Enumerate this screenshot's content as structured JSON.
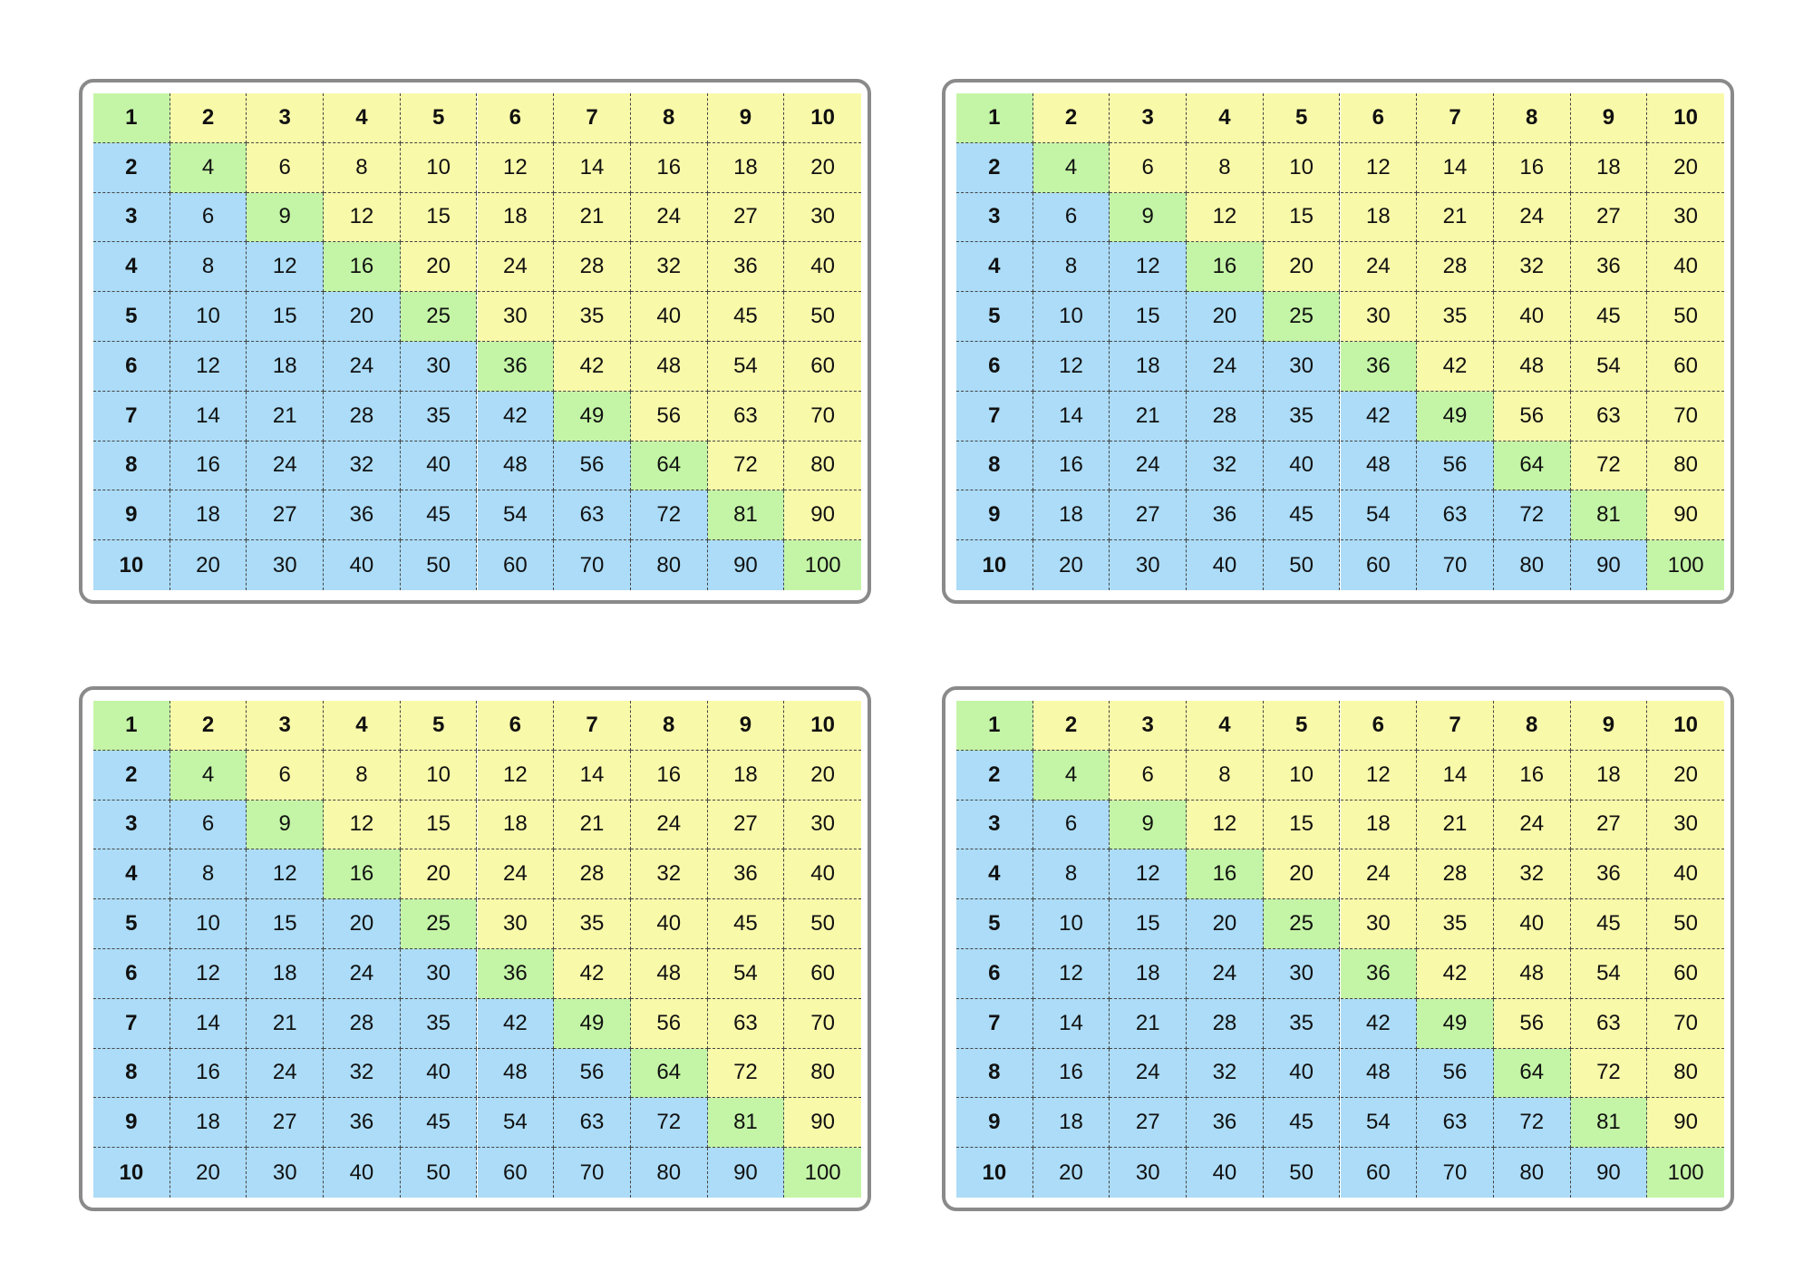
{
  "tables": [
    {
      "rows": [
        [
          1,
          2,
          3,
          4,
          5,
          6,
          7,
          8,
          9,
          10
        ],
        [
          2,
          4,
          6,
          8,
          10,
          12,
          14,
          16,
          18,
          20
        ],
        [
          3,
          6,
          9,
          12,
          15,
          18,
          21,
          24,
          27,
          30
        ],
        [
          4,
          8,
          12,
          16,
          20,
          24,
          28,
          32,
          36,
          40
        ],
        [
          5,
          10,
          15,
          20,
          25,
          30,
          35,
          40,
          45,
          50
        ],
        [
          6,
          12,
          18,
          24,
          30,
          36,
          42,
          48,
          54,
          60
        ],
        [
          7,
          14,
          21,
          28,
          35,
          42,
          49,
          56,
          63,
          70
        ],
        [
          8,
          16,
          24,
          32,
          40,
          48,
          56,
          64,
          72,
          80
        ],
        [
          9,
          18,
          27,
          36,
          45,
          54,
          63,
          72,
          81,
          90
        ],
        [
          10,
          20,
          30,
          40,
          50,
          60,
          70,
          80,
          90,
          100
        ]
      ]
    },
    {
      "rows": [
        [
          1,
          2,
          3,
          4,
          5,
          6,
          7,
          8,
          9,
          10
        ],
        [
          2,
          4,
          6,
          8,
          10,
          12,
          14,
          16,
          18,
          20
        ],
        [
          3,
          6,
          9,
          12,
          15,
          18,
          21,
          24,
          27,
          30
        ],
        [
          4,
          8,
          12,
          16,
          20,
          24,
          28,
          32,
          36,
          40
        ],
        [
          5,
          10,
          15,
          20,
          25,
          30,
          35,
          40,
          45,
          50
        ],
        [
          6,
          12,
          18,
          24,
          30,
          36,
          42,
          48,
          54,
          60
        ],
        [
          7,
          14,
          21,
          28,
          35,
          42,
          49,
          56,
          63,
          70
        ],
        [
          8,
          16,
          24,
          32,
          40,
          48,
          56,
          64,
          72,
          80
        ],
        [
          9,
          18,
          27,
          36,
          45,
          54,
          63,
          72,
          81,
          90
        ],
        [
          10,
          20,
          30,
          40,
          50,
          60,
          70,
          80,
          90,
          100
        ]
      ]
    },
    {
      "rows": [
        [
          1,
          2,
          3,
          4,
          5,
          6,
          7,
          8,
          9,
          10
        ],
        [
          2,
          4,
          6,
          8,
          10,
          12,
          14,
          16,
          18,
          20
        ],
        [
          3,
          6,
          9,
          12,
          15,
          18,
          21,
          24,
          27,
          30
        ],
        [
          4,
          8,
          12,
          16,
          20,
          24,
          28,
          32,
          36,
          40
        ],
        [
          5,
          10,
          15,
          20,
          25,
          30,
          35,
          40,
          45,
          50
        ],
        [
          6,
          12,
          18,
          24,
          30,
          36,
          42,
          48,
          54,
          60
        ],
        [
          7,
          14,
          21,
          28,
          35,
          42,
          49,
          56,
          63,
          70
        ],
        [
          8,
          16,
          24,
          32,
          40,
          48,
          56,
          64,
          72,
          80
        ],
        [
          9,
          18,
          27,
          36,
          45,
          54,
          63,
          72,
          81,
          90
        ],
        [
          10,
          20,
          30,
          40,
          50,
          60,
          70,
          80,
          90,
          100
        ]
      ]
    },
    {
      "rows": [
        [
          1,
          2,
          3,
          4,
          5,
          6,
          7,
          8,
          9,
          10
        ],
        [
          2,
          4,
          6,
          8,
          10,
          12,
          14,
          16,
          18,
          20
        ],
        [
          3,
          6,
          9,
          12,
          15,
          18,
          21,
          24,
          27,
          30
        ],
        [
          4,
          8,
          12,
          16,
          20,
          24,
          28,
          32,
          36,
          40
        ],
        [
          5,
          10,
          15,
          20,
          25,
          30,
          35,
          40,
          45,
          50
        ],
        [
          6,
          12,
          18,
          24,
          30,
          36,
          42,
          48,
          54,
          60
        ],
        [
          7,
          14,
          21,
          28,
          35,
          42,
          49,
          56,
          63,
          70
        ],
        [
          8,
          16,
          24,
          32,
          40,
          48,
          56,
          64,
          72,
          80
        ],
        [
          9,
          18,
          27,
          36,
          45,
          54,
          63,
          72,
          81,
          90
        ],
        [
          10,
          20,
          30,
          40,
          50,
          60,
          70,
          80,
          90,
          100
        ]
      ]
    }
  ]
}
